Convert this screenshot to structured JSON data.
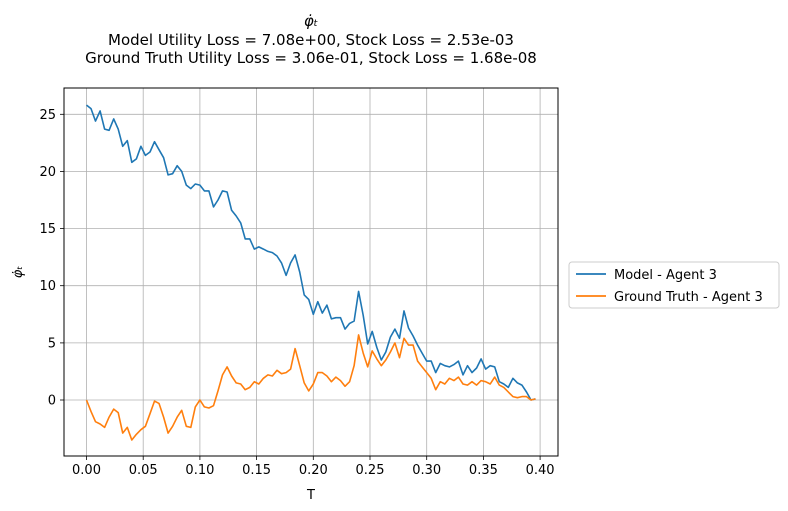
{
  "chart_data": {
    "type": "line",
    "title_lines": [
      "φ̇ₜ",
      "Model Utility Loss = 7.08e+00, Stock Loss = 2.53e-03",
      "Ground Truth Utility Loss = 3.06e-01, Stock Loss = 1.68e-08"
    ],
    "xlabel": "T",
    "ylabel": "φ̇ₜ",
    "xlim": [
      -0.0198,
      0.4158
    ],
    "ylim": [
      -4.9,
      27.3
    ],
    "xticks": [
      0.0,
      0.05,
      0.1,
      0.15,
      0.2,
      0.25,
      0.3,
      0.35,
      0.4
    ],
    "xtick_labels": [
      "0.00",
      "0.05",
      "0.10",
      "0.15",
      "0.20",
      "0.25",
      "0.30",
      "0.35",
      "0.40"
    ],
    "yticks": [
      0,
      5,
      10,
      15,
      20,
      25
    ],
    "ytick_labels": [
      "0",
      "5",
      "10",
      "15",
      "20",
      "25"
    ],
    "grid": true,
    "legend_position": "outside-right",
    "series": [
      {
        "name": "Model - Agent 3",
        "color": "#1f77b4",
        "x": [
          0.0,
          0.004,
          0.008,
          0.012,
          0.016,
          0.02,
          0.024,
          0.028,
          0.032,
          0.036,
          0.04,
          0.044,
          0.048,
          0.052,
          0.056,
          0.06,
          0.064,
          0.068,
          0.072,
          0.076,
          0.08,
          0.084,
          0.088,
          0.092,
          0.096,
          0.1,
          0.104,
          0.108,
          0.112,
          0.116,
          0.12,
          0.124,
          0.128,
          0.132,
          0.136,
          0.14,
          0.144,
          0.148,
          0.152,
          0.156,
          0.16,
          0.164,
          0.168,
          0.172,
          0.176,
          0.18,
          0.184,
          0.188,
          0.192,
          0.196,
          0.2,
          0.204,
          0.208,
          0.212,
          0.216,
          0.22,
          0.224,
          0.228,
          0.232,
          0.236,
          0.24,
          0.244,
          0.248,
          0.252,
          0.256,
          0.26,
          0.264,
          0.268,
          0.272,
          0.276,
          0.28,
          0.284,
          0.288,
          0.292,
          0.296,
          0.3,
          0.304,
          0.308,
          0.312,
          0.316,
          0.32,
          0.324,
          0.328,
          0.332,
          0.336,
          0.34,
          0.344,
          0.348,
          0.352,
          0.356,
          0.36,
          0.364,
          0.368,
          0.372,
          0.376,
          0.38,
          0.384,
          0.388,
          0.392,
          0.396
        ],
        "y": [
          25.8,
          25.5,
          24.4,
          25.3,
          23.7,
          23.6,
          24.6,
          23.7,
          22.2,
          22.7,
          20.8,
          21.1,
          22.2,
          21.4,
          21.7,
          22.6,
          21.9,
          21.2,
          19.7,
          19.8,
          20.5,
          20.0,
          18.8,
          18.5,
          18.9,
          18.8,
          18.3,
          18.3,
          16.9,
          17.5,
          18.3,
          18.2,
          16.6,
          16.1,
          15.5,
          14.1,
          14.1,
          13.2,
          13.4,
          13.2,
          13.0,
          12.9,
          12.6,
          12.0,
          10.9,
          12.0,
          12.7,
          11.2,
          9.2,
          8.8,
          7.5,
          8.6,
          7.6,
          8.3,
          7.1,
          7.2,
          7.2,
          6.2,
          6.7,
          6.9,
          9.5,
          7.4,
          4.9,
          6.0,
          4.6,
          3.5,
          4.2,
          5.5,
          6.2,
          5.4,
          7.8,
          6.3,
          5.6,
          4.8,
          4.1,
          3.4,
          3.4,
          2.4,
          3.2,
          3.0,
          2.9,
          3.1,
          3.4,
          2.2,
          3.0,
          2.4,
          2.8,
          3.6,
          2.7,
          3.0,
          2.9,
          1.6,
          1.4,
          1.1,
          1.9,
          1.5,
          1.3,
          0.7,
          0.0,
          0.1
        ]
      },
      {
        "name": "Ground Truth - Agent 3",
        "color": "#ff7f0e",
        "x": [
          0.0,
          0.004,
          0.008,
          0.012,
          0.016,
          0.02,
          0.024,
          0.028,
          0.032,
          0.036,
          0.04,
          0.044,
          0.048,
          0.052,
          0.056,
          0.06,
          0.064,
          0.068,
          0.072,
          0.076,
          0.08,
          0.084,
          0.088,
          0.092,
          0.096,
          0.1,
          0.104,
          0.108,
          0.112,
          0.116,
          0.12,
          0.124,
          0.128,
          0.132,
          0.136,
          0.14,
          0.144,
          0.148,
          0.152,
          0.156,
          0.16,
          0.164,
          0.168,
          0.172,
          0.176,
          0.18,
          0.184,
          0.188,
          0.192,
          0.196,
          0.2,
          0.204,
          0.208,
          0.212,
          0.216,
          0.22,
          0.224,
          0.228,
          0.232,
          0.236,
          0.24,
          0.244,
          0.248,
          0.252,
          0.256,
          0.26,
          0.264,
          0.268,
          0.272,
          0.276,
          0.28,
          0.284,
          0.288,
          0.292,
          0.296,
          0.3,
          0.304,
          0.308,
          0.312,
          0.316,
          0.32,
          0.324,
          0.328,
          0.332,
          0.336,
          0.34,
          0.344,
          0.348,
          0.352,
          0.356,
          0.36,
          0.364,
          0.368,
          0.372,
          0.376,
          0.38,
          0.384,
          0.388,
          0.392,
          0.396
        ],
        "y": [
          0.0,
          -1.0,
          -1.9,
          -2.1,
          -2.4,
          -1.5,
          -0.8,
          -1.1,
          -2.9,
          -2.4,
          -3.5,
          -3.0,
          -2.6,
          -2.3,
          -1.2,
          -0.1,
          -0.3,
          -1.5,
          -2.9,
          -2.3,
          -1.5,
          -0.9,
          -2.3,
          -2.4,
          -0.6,
          0.0,
          -0.6,
          -0.7,
          -0.5,
          0.8,
          2.2,
          2.9,
          2.1,
          1.5,
          1.4,
          0.9,
          1.1,
          1.6,
          1.4,
          1.9,
          2.2,
          2.1,
          2.6,
          2.3,
          2.4,
          2.7,
          4.5,
          3.0,
          1.5,
          0.8,
          1.4,
          2.4,
          2.4,
          2.1,
          1.6,
          2.0,
          1.7,
          1.2,
          1.6,
          3.0,
          5.7,
          4.1,
          2.9,
          4.3,
          3.6,
          3.0,
          3.5,
          4.2,
          5.0,
          3.7,
          5.4,
          4.8,
          4.8,
          3.4,
          2.9,
          2.4,
          1.9,
          0.9,
          1.6,
          1.4,
          1.9,
          1.7,
          2.0,
          1.4,
          1.3,
          1.6,
          1.3,
          1.7,
          1.6,
          1.4,
          2.0,
          1.3,
          1.1,
          0.7,
          0.3,
          0.2,
          0.3,
          0.3,
          0.0,
          0.1
        ]
      }
    ]
  }
}
